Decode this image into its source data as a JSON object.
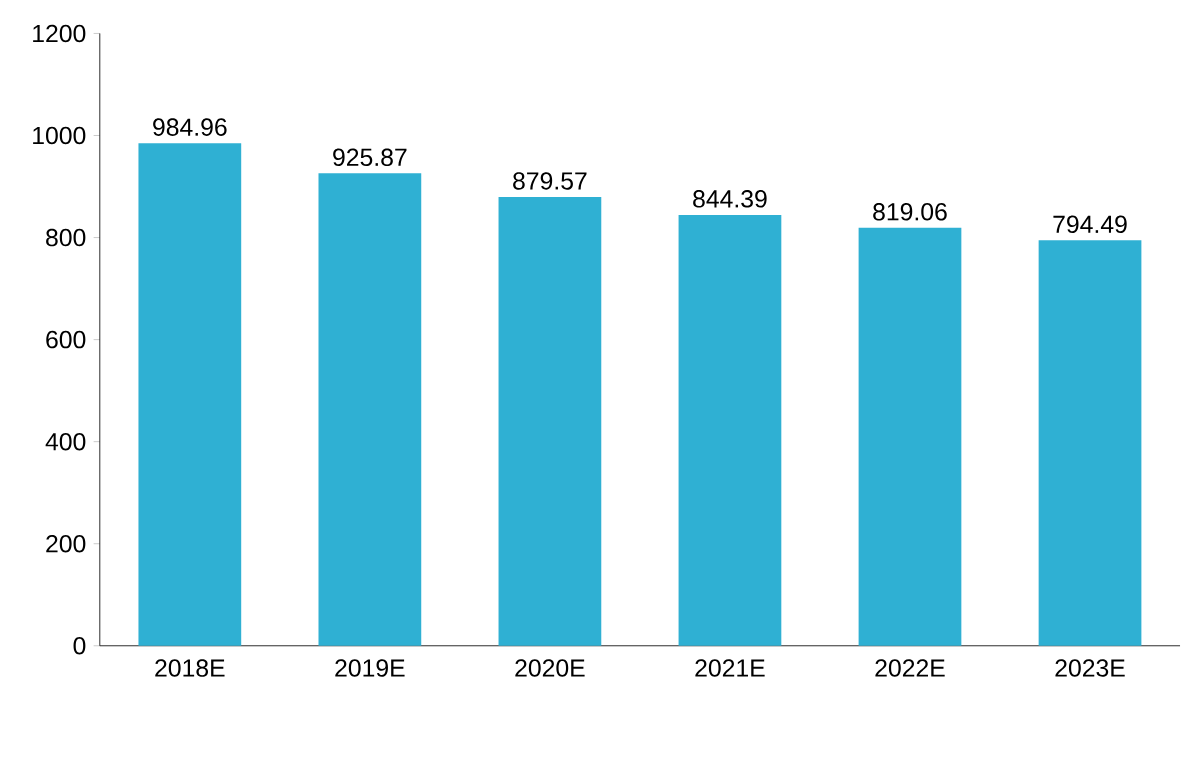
{
  "chart_data": {
    "type": "bar",
    "categories": [
      "2018E",
      "2019E",
      "2020E",
      "2021E",
      "2022E",
      "2023E"
    ],
    "values": [
      984.96,
      925.87,
      879.57,
      844.39,
      819.06,
      794.49
    ],
    "color": "#2fb0d3",
    "ylim": [
      0,
      1200
    ],
    "yticks": [
      0,
      200,
      400,
      600,
      800,
      1000,
      1200
    ],
    "data_labels": true
  }
}
